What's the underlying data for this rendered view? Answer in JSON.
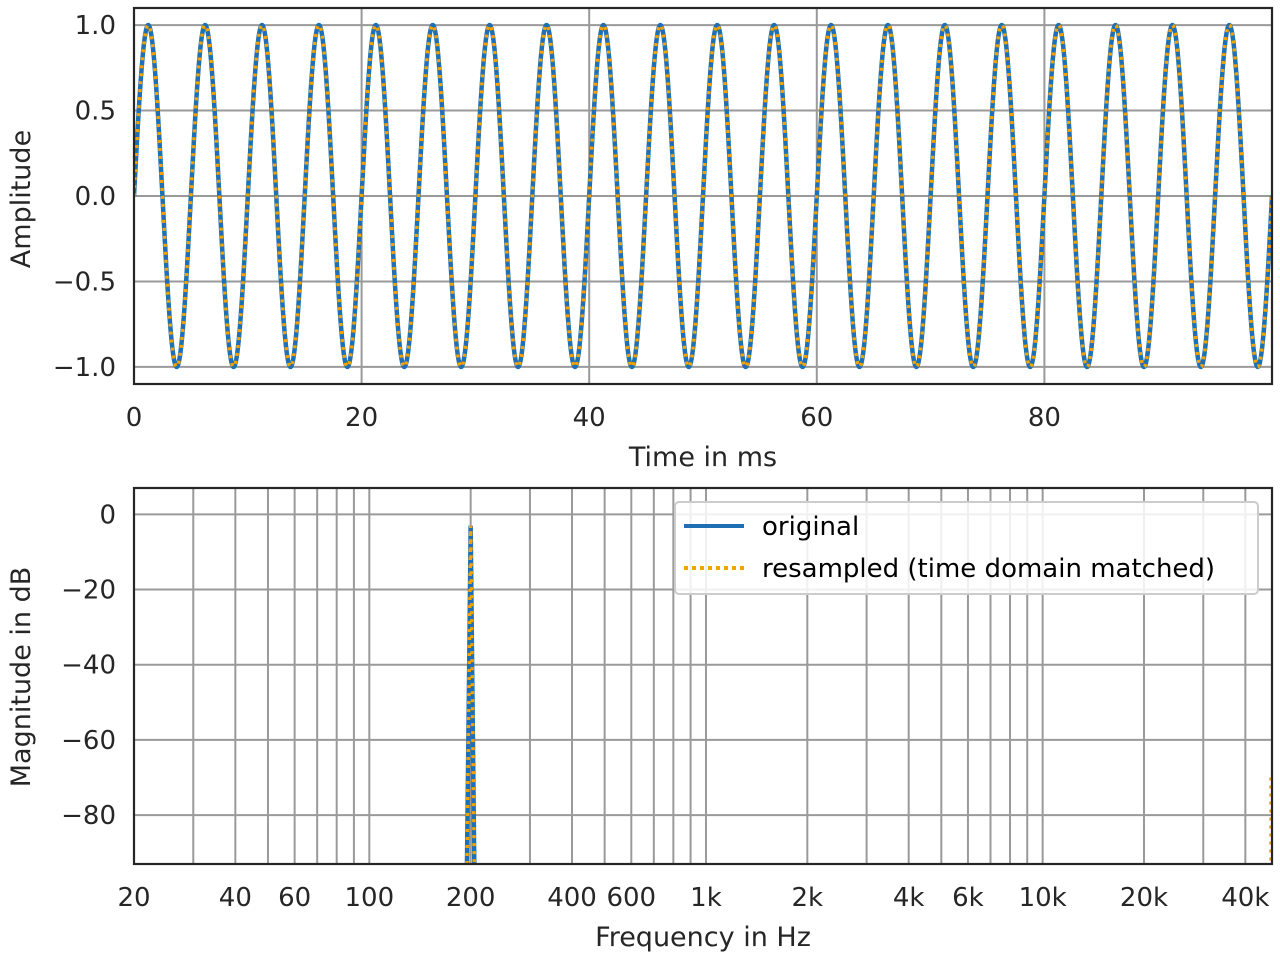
{
  "colors": {
    "original": "#1f6fb4",
    "resampled": "#f5a300",
    "grid": "#9a9a9a",
    "axes": "#262626"
  },
  "chart_data": [
    {
      "type": "line",
      "xlabel": "Time in ms",
      "ylabel": "Amplitude",
      "xlim": [
        0,
        100
      ],
      "ylim": [
        -1.1,
        1.1
      ],
      "xticks": [
        0,
        20,
        40,
        60,
        80
      ],
      "xtick_labels": [
        "0",
        "20",
        "40",
        "60",
        "80"
      ],
      "yticks": [
        1.0,
        0.5,
        0.0,
        -0.5,
        -1.0
      ],
      "ytick_labels": [
        "1.0",
        "0.5",
        "0.0",
        "−0.5",
        "−1.0"
      ],
      "grid": true,
      "signal": {
        "waveform": "sine",
        "frequency_hz": 200,
        "amplitude": 1.0
      },
      "series": [
        {
          "style": "solid",
          "color": "#1f6fb4"
        },
        {
          "style": "dotted",
          "color": "#f5a300"
        }
      ]
    },
    {
      "type": "line",
      "xlabel": "Frequency in Hz",
      "ylabel": "Magnitude in dB",
      "xscale": "log",
      "xlim": [
        20,
        48000
      ],
      "ylim": [
        -93,
        7
      ],
      "xticks": [
        20,
        40,
        60,
        100,
        200,
        400,
        600,
        1000,
        2000,
        4000,
        6000,
        10000,
        20000,
        40000
      ],
      "xtick_labels": [
        "20",
        "40",
        "60",
        "100",
        "200",
        "400",
        "600",
        "1k",
        "2k",
        "4k",
        "6k",
        "10k",
        "20k",
        "40k"
      ],
      "yticks": [
        0,
        -20,
        -40,
        -60,
        -80
      ],
      "ytick_labels": [
        "0",
        "−20",
        "−40",
        "−60",
        "−80"
      ],
      "grid": true,
      "legend_position": "top-right",
      "series": [
        {
          "name": "original",
          "style": "solid",
          "color": "#1f6fb4",
          "points": [
            [
              195,
              -93
            ],
            [
              198,
              -40
            ],
            [
              200,
              -3
            ],
            [
              202,
              -40
            ],
            [
              205,
              -93
            ]
          ]
        },
        {
          "name": "resampled (time domain matched)",
          "style": "dotted",
          "color": "#f5a300",
          "points": [
            [
              195,
              -93
            ],
            [
              198,
              -40
            ],
            [
              200,
              -3
            ],
            [
              202,
              -40
            ],
            [
              205,
              -93
            ],
            [
              48000,
              -70
            ]
          ]
        }
      ]
    }
  ]
}
